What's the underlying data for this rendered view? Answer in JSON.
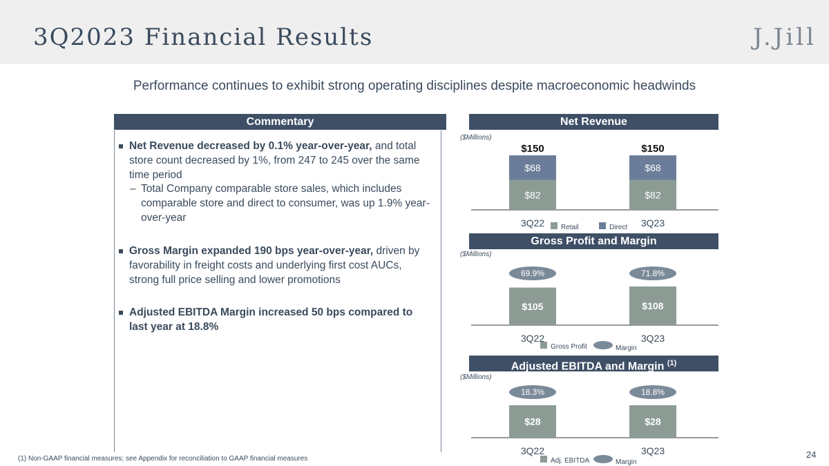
{
  "header": {
    "title": "3Q2023 Financial Results",
    "logo": "J.Jill"
  },
  "subtitle": "Performance continues to exhibit strong operating disciplines despite macroeconomic headwinds",
  "commentary": {
    "header": "Commentary",
    "bullet1_bold": "Net Revenue decreased by 0.1% year-over-year,",
    "bullet1_text": " and total store count decreased by 1%, from 247 to 245 over the same time period",
    "sub_bullet": "Total Company comparable store sales, which includes comparable store and direct to consumer, was up 1.9% year-over-year",
    "bullet2_bold": "Gross Margin expanded 190 bps year-over-year,",
    "bullet2_text": " driven by favorability in freight costs and underlying first cost AUCs, strong full price selling and lower promotions",
    "bullet3_bold": "Adjusted EBITDA Margin increased 50 bps compared to last year at 18.8%"
  },
  "units_label": "($Millions)",
  "footnote": "(1) Non-GAAP financial measures; see Appendix for reconciliation to GAAP financial measures",
  "page_number": "24",
  "colors": {
    "retail": "#8c9c94",
    "direct": "#6b7d99",
    "bar": "#8c9c94",
    "pill": "#7b8a99",
    "header_bg": "#3e4f66"
  },
  "chart_data": [
    {
      "type": "bar",
      "title": "Net Revenue",
      "categories": [
        "3Q22",
        "3Q23"
      ],
      "stacked": true,
      "series": [
        {
          "name": "Retail",
          "values": [
            82,
            82
          ],
          "labels": [
            "$82",
            "$82"
          ]
        },
        {
          "name": "Direct",
          "values": [
            68,
            68
          ],
          "labels": [
            "$68",
            "$68"
          ]
        }
      ],
      "totals": [
        "$150",
        "$150"
      ],
      "ylim": [
        0,
        150
      ]
    },
    {
      "type": "bar",
      "title": "Gross Profit and Margin",
      "categories": [
        "3Q22",
        "3Q23"
      ],
      "series": [
        {
          "name": "Gross Profit",
          "values": [
            105,
            108
          ],
          "labels": [
            "$105",
            "$108"
          ]
        },
        {
          "name": "Margin",
          "values": [
            69.9,
            71.8
          ],
          "labels": [
            "69.9%",
            "71.8%"
          ]
        }
      ],
      "ylim": [
        0,
        108
      ]
    },
    {
      "type": "bar",
      "title": "Adjusted EBITDA and Margin",
      "title_superscript": "(1)",
      "categories": [
        "3Q22",
        "3Q23"
      ],
      "series": [
        {
          "name": "Adj. EBITDA",
          "values": [
            28,
            28
          ],
          "labels": [
            "$28",
            "$28"
          ]
        },
        {
          "name": "Margin",
          "values": [
            18.3,
            18.8
          ],
          "labels": [
            "18.3%",
            "18.8%"
          ]
        }
      ],
      "ylim": [
        0,
        28
      ]
    }
  ]
}
